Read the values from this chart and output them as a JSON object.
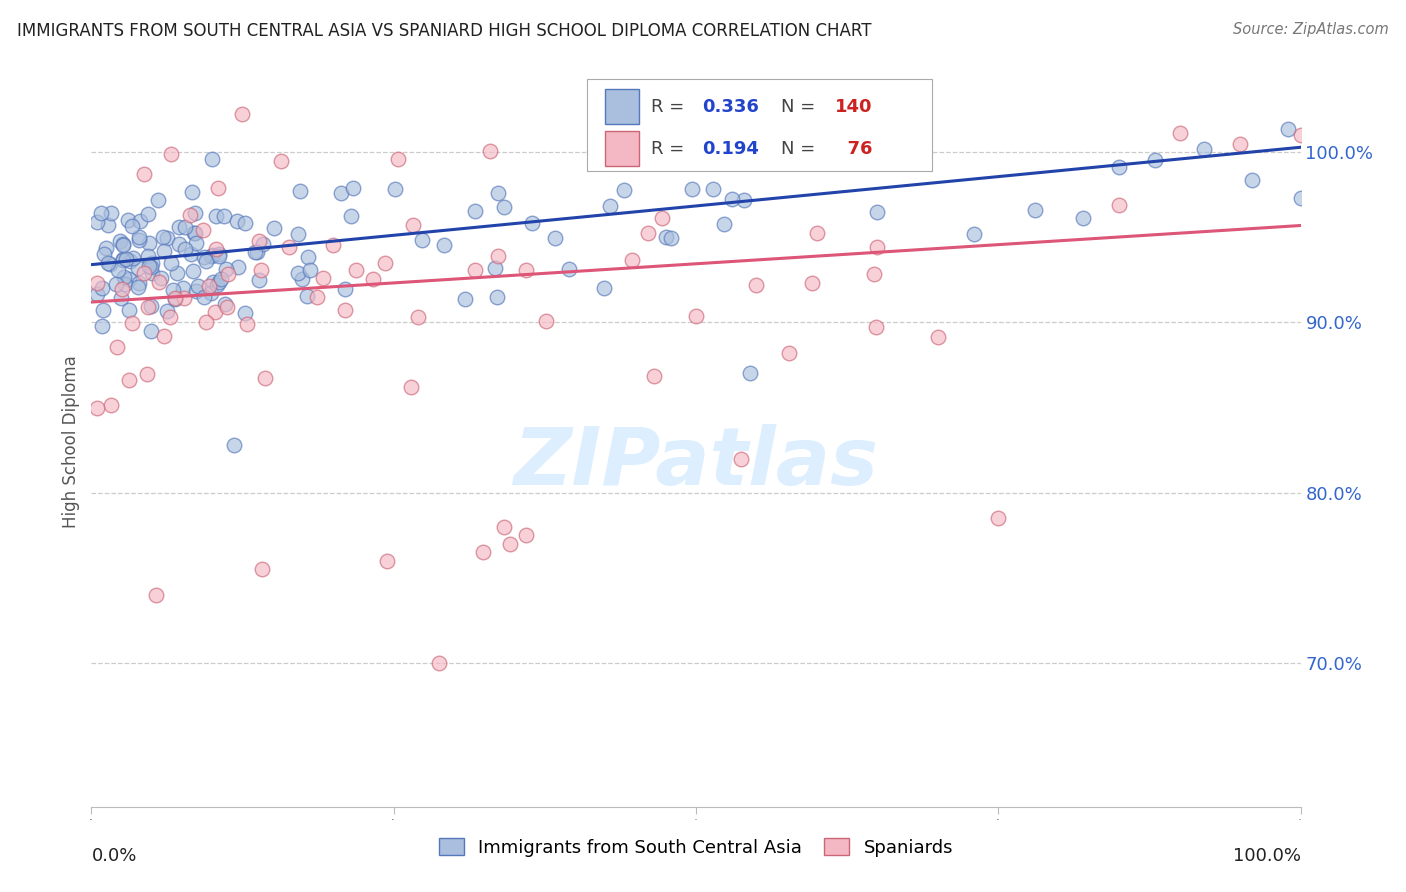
{
  "title": "IMMIGRANTS FROM SOUTH CENTRAL ASIA VS SPANIARD HIGH SCHOOL DIPLOMA CORRELATION CHART",
  "source": "Source: ZipAtlas.com",
  "ylabel": "High School Diploma",
  "blue_R": 0.336,
  "blue_N": 140,
  "pink_R": 0.194,
  "pink_N": 76,
  "blue_fill_color": "#aabfdd",
  "pink_fill_color": "#f4b8c4",
  "blue_edge_color": "#5577bb",
  "pink_edge_color": "#cc6677",
  "blue_line_color": "#2244aa",
  "pink_line_color": "#dd5577",
  "legend_R_color": "#2244cc",
  "legend_N_color": "#cc2222",
  "watermark_color": "#ddeeff",
  "xlim": [
    0.0,
    1.0
  ],
  "ylim": [
    0.615,
    1.045
  ],
  "yticks": [
    0.7,
    0.8,
    0.9,
    1.0
  ],
  "ytick_labels": [
    "70.0%",
    "80.0%",
    "90.0%",
    "100.0%"
  ],
  "blue_trend_x0": 0.0,
  "blue_trend_y0": 0.934,
  "blue_trend_x1": 1.0,
  "blue_trend_y1": 1.003,
  "pink_trend_x0": 0.0,
  "pink_trend_y0": 0.912,
  "pink_trend_x1": 1.0,
  "pink_trend_y1": 0.957
}
